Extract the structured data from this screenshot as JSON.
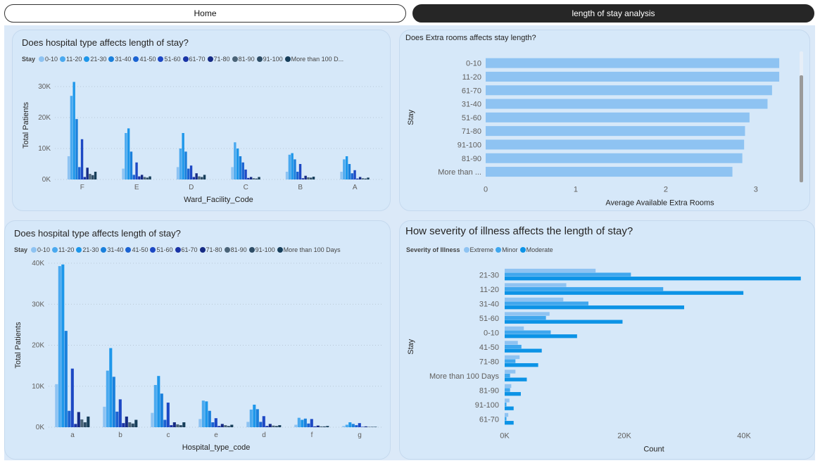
{
  "nav": {
    "home_label": "Home",
    "active_label": "length of stay analysis"
  },
  "colors": {
    "stay": [
      "#8ec3f2",
      "#4aa9ef",
      "#1e97ea",
      "#1a80dc",
      "#1b63d2",
      "#1d48c4",
      "#1a34a6",
      "#152a84",
      "#4b6478",
      "#2e4d66",
      "#173e5a"
    ],
    "severity": [
      "#8ec3f2",
      "#3fa7ee",
      "#0c93e6"
    ],
    "extra_rooms_bar": "#8ec3f2",
    "grid": "#b8c7d6"
  },
  "charts": [
    {
      "title": "Does hospital type affects length of stay?",
      "legend_title": "Stay",
      "legend_items": [
        "0-10",
        "11-20",
        "21-30",
        "31-40",
        "41-50",
        "51-60",
        "61-70",
        "71-80",
        "81-90",
        "91-100",
        "More than 100 D..."
      ],
      "chart_data": {
        "type": "bar",
        "xlabel": "Ward_Facility_Code",
        "ylabel": "Total Patients",
        "ylim": [
          0,
          35000
        ],
        "yticks": [
          0,
          10000,
          20000,
          30000
        ],
        "ytick_labels": [
          "0K",
          "10K",
          "20K",
          "30K"
        ],
        "grid": true,
        "categories": [
          "F",
          "E",
          "D",
          "C",
          "B",
          "A"
        ],
        "series": [
          {
            "name": "0-10",
            "values": [
              7500,
              3500,
              4000,
              4000,
              2500,
              2500
            ]
          },
          {
            "name": "11-20",
            "values": [
              27000,
              15000,
              10000,
              12000,
              8000,
              6500
            ]
          },
          {
            "name": "21-30",
            "values": [
              31500,
              16500,
              15000,
              10000,
              8500,
              7500
            ]
          },
          {
            "name": "31-40",
            "values": [
              19500,
              9000,
              9000,
              7500,
              6500,
              5000
            ]
          },
          {
            "name": "41-50",
            "values": [
              4000,
              1500,
              3500,
              5500,
              2500,
              2000
            ]
          },
          {
            "name": "51-60",
            "values": [
              13000,
              5500,
              4500,
              3200,
              5000,
              3000
            ]
          },
          {
            "name": "61-70",
            "values": [
              800,
              1000,
              800,
              500,
              400,
              300
            ]
          },
          {
            "name": "71-80",
            "values": [
              3800,
              1500,
              2000,
              800,
              1200,
              800
            ]
          },
          {
            "name": "81-90",
            "values": [
              1800,
              800,
              1000,
              400,
              700,
              400
            ]
          },
          {
            "name": "91-100",
            "values": [
              1400,
              600,
              800,
              300,
              600,
              300
            ]
          },
          {
            "name": "More than 100 Days",
            "values": [
              2500,
              1000,
              1500,
              800,
              900,
              600
            ]
          }
        ]
      }
    },
    {
      "title": "Does Extra rooms affects stay length?",
      "chart_data": {
        "type": "bar",
        "orientation": "horizontal",
        "xlabel": "Average Available Extra Rooms",
        "ylabel": "Stay",
        "xlim": [
          0,
          3.4
        ],
        "xticks": [
          0,
          1,
          2,
          3
        ],
        "grid": false,
        "categories": [
          "0-10",
          "11-20",
          "61-70",
          "31-40",
          "51-60",
          "71-80",
          "91-100",
          "81-90",
          "More than ..."
        ],
        "values": [
          3.26,
          3.26,
          3.18,
          3.13,
          2.93,
          2.88,
          2.87,
          2.85,
          2.74
        ]
      }
    },
    {
      "title": "Does hospital type affects length of stay?",
      "legend_title": "Stay",
      "legend_items": [
        "0-10",
        "11-20",
        "21-30",
        "31-40",
        "41-50",
        "51-60",
        "61-70",
        "71-80",
        "81-90",
        "91-100",
        "More than 100 Days"
      ],
      "chart_data": {
        "type": "bar",
        "xlabel": "Hospital_type_code",
        "ylabel": "Total Patients",
        "ylim": [
          0,
          40000
        ],
        "yticks": [
          0,
          10000,
          20000,
          30000,
          40000
        ],
        "ytick_labels": [
          "0K",
          "10K",
          "20K",
          "30K",
          "40K"
        ],
        "grid": true,
        "categories": [
          "a",
          "b",
          "c",
          "e",
          "d",
          "f",
          "g"
        ],
        "series": [
          {
            "name": "0-10",
            "values": [
              10500,
              5000,
              3500,
              2000,
              1300,
              600,
              300
            ]
          },
          {
            "name": "11-20",
            "values": [
              39300,
              13800,
              10300,
              6500,
              4300,
              2300,
              600
            ]
          },
          {
            "name": "21-30",
            "values": [
              39700,
              19300,
              12500,
              6300,
              5500,
              1800,
              1200
            ]
          },
          {
            "name": "31-40",
            "values": [
              23500,
              12300,
              8200,
              4000,
              4400,
              2100,
              800
            ]
          },
          {
            "name": "41-50",
            "values": [
              4000,
              3800,
              1800,
              1200,
              1300,
              900,
              500
            ]
          },
          {
            "name": "51-60",
            "values": [
              14300,
              6800,
              6000,
              2200,
              2700,
              2000,
              1000
            ]
          },
          {
            "name": "61-70",
            "values": [
              800,
              1000,
              500,
              300,
              300,
              200,
              100
            ]
          },
          {
            "name": "71-80",
            "values": [
              3700,
              2600,
              1200,
              800,
              800,
              400,
              200
            ]
          },
          {
            "name": "81-90",
            "values": [
              1900,
              1200,
              700,
              500,
              400,
              200,
              100
            ]
          },
          {
            "name": "91-100",
            "values": [
              1200,
              900,
              500,
              300,
              300,
              200,
              100
            ]
          },
          {
            "name": "More than 100 Days",
            "values": [
              2600,
              1800,
              1200,
              600,
              500,
              300,
              100
            ]
          }
        ]
      }
    },
    {
      "title": "How severity of illness affects the length of stay?",
      "legend_title": "Severity of Illness",
      "legend_items": [
        "Extreme",
        "Minor",
        "Moderate"
      ],
      "chart_data": {
        "type": "bar",
        "orientation": "horizontal",
        "xlabel": "Count",
        "ylabel": "Stay",
        "xlim": [
          0,
          50000
        ],
        "xticks": [
          0,
          20000,
          40000
        ],
        "xtick_labels": [
          "0K",
          "20K",
          "40K"
        ],
        "grid": false,
        "categories": [
          "21-30",
          "11-20",
          "31-40",
          "51-60",
          "0-10",
          "41-50",
          "71-80",
          "More than 100 Days",
          "81-90",
          "91-100",
          "61-70"
        ],
        "series": [
          {
            "name": "Extreme",
            "values": [
              15200,
              10300,
              9800,
              7500,
              3200,
              2200,
              2500,
              1800,
              1100,
              800,
              600
            ]
          },
          {
            "name": "Minor",
            "values": [
              21100,
              26500,
              14000,
              6900,
              7700,
              2800,
              1800,
              900,
              900,
              300,
              300
            ]
          },
          {
            "name": "Moderate",
            "values": [
              49500,
              39900,
              30000,
              19700,
              12100,
              6200,
              5600,
              3700,
              2700,
              1500,
              1500
            ]
          }
        ]
      }
    }
  ]
}
